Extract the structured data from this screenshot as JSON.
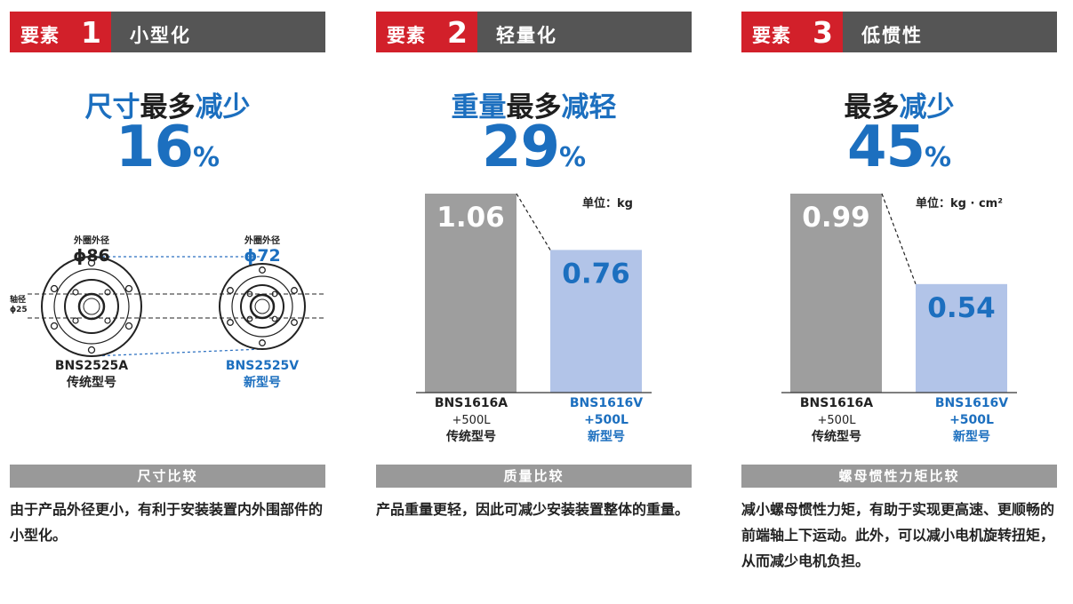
{
  "columns": [
    {
      "badge_label": "要素",
      "badge_number": "1",
      "title": "小型化",
      "headline_blue": "尺寸",
      "headline_dark": "最多",
      "headline_blue2": "减少",
      "percent_value": "16",
      "percent_sign": "%",
      "diagram": {
        "old_outer_label": "外圈外径",
        "old_outer_value": "ϕ86",
        "new_outer_label": "外圈外径",
        "new_outer_value": "ϕ72",
        "shaft_label": "轴径",
        "shaft_value": "ϕ25",
        "old_model": "BNS2525A",
        "old_type": "传统型号",
        "new_model": "BNS2525V",
        "new_type": "新型号"
      },
      "section_label": "尺寸比较",
      "description": "由于产品外径更小，有利于安装装置内外围部件的小型化。"
    },
    {
      "badge_label": "要素",
      "badge_number": "2",
      "title": "轻量化",
      "headline_blue": "重量",
      "headline_dark": "最多",
      "headline_blue2": "减轻",
      "percent_value": "29",
      "percent_sign": "%",
      "unit": "单位：kg",
      "chart_data": {
        "type": "bar",
        "categories": [
          "BNS1616A +500L 传统型号",
          "BNS1616V +500L 新型号"
        ],
        "values": [
          1.06,
          0.76
        ],
        "unit": "kg",
        "colors": [
          "#9e9e9e",
          "#b2c4e8"
        ]
      },
      "bars": [
        {
          "value": "1.06",
          "model": "BNS1616A",
          "length": "+500L",
          "type": "传统型号"
        },
        {
          "value": "0.76",
          "model": "BNS1616V",
          "length": "+500L",
          "type": "新型号"
        }
      ],
      "section_label": "质量比较",
      "description": "产品重量更轻，因此可减少安装装置整体的重量。"
    },
    {
      "badge_label": "要素",
      "badge_number": "3",
      "title": "低惯性",
      "headline_blue": "",
      "headline_dark": "最多",
      "headline_blue2": "减少",
      "percent_value": "45",
      "percent_sign": "%",
      "unit": "单位：kg · cm²",
      "chart_data": {
        "type": "bar",
        "categories": [
          "BNS1616A +500L 传统型号",
          "BNS1616V +500L 新型号"
        ],
        "values": [
          0.99,
          0.54
        ],
        "unit": "kg · cm²",
        "colors": [
          "#9e9e9e",
          "#b2c4e8"
        ]
      },
      "bars": [
        {
          "value": "0.99",
          "model": "BNS1616A",
          "length": "+500L",
          "type": "传统型号"
        },
        {
          "value": "0.54",
          "model": "BNS1616V",
          "length": "+500L",
          "type": "新型号"
        }
      ],
      "section_label": "螺母惯性力矩比较",
      "description": "减小螺母惯性力矩，有助于实现更高速、更顺畅的前端轴上下运动。此外，可以减小电机旋转扭矩，从而减少电机负担。"
    }
  ],
  "colors": {
    "badge_red": "#d2202a",
    "header_gray": "#555555",
    "accent_blue": "#1c6fbf",
    "old_bar": "#9e9e9e",
    "new_bar": "#b2c4e8",
    "section_gray": "#999999"
  }
}
